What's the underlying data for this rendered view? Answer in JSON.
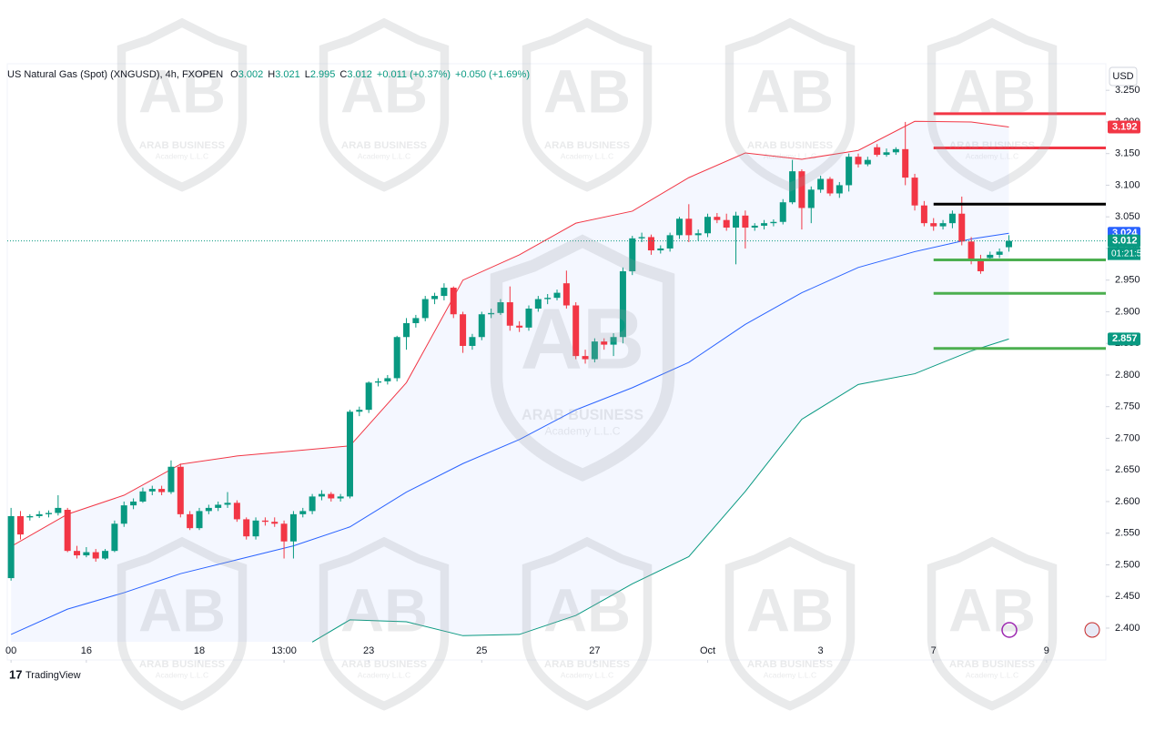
{
  "chart_data": {
    "type": "candlestick",
    "header": {
      "title": "US Natural Gas (Spot) (XNGUSD), 4h, FXOPEN",
      "fields": [
        {
          "key": "O",
          "value": 3.002
        },
        {
          "key": "H",
          "value": 3.021
        },
        {
          "key": "L",
          "value": 2.995
        },
        {
          "key": "C",
          "value": 3.012
        }
      ],
      "change": "+0.011 (+0.37%)",
      "change2": "+0.050 (+1.69%)"
    },
    "currency": "USD",
    "brand": "TradingView",
    "watermark": {
      "name": "ARAB BUSINESS",
      "sub": "Academy L.L.C"
    },
    "up_color": "#089981",
    "down_color": "#f23645",
    "open": [
      2.479,
      2.577,
      2.575,
      2.577,
      2.58,
      2.582,
      2.587,
      2.522,
      2.515,
      2.52,
      2.51,
      2.522,
      2.565,
      2.594,
      2.6,
      2.616,
      2.62,
      2.615,
      2.655,
      2.58,
      2.558,
      2.585,
      2.59,
      2.595,
      2.598,
      2.572,
      2.545,
      2.57,
      2.568,
      2.565,
      2.537,
      2.58,
      2.585,
      2.608,
      2.612,
      2.605,
      2.608,
      2.742,
      2.745,
      2.788,
      2.79,
      2.795,
      2.86,
      2.882,
      2.89,
      2.92,
      2.925,
      2.938,
      2.896,
      2.846,
      2.86,
      2.896,
      2.898,
      2.915,
      2.878,
      2.875,
      2.905,
      2.92,
      2.922,
      2.945,
      2.91,
      2.83,
      2.825,
      2.853,
      2.848,
      2.86,
      2.964,
      3.016,
      3.018,
      2.997,
      3.0,
      3.021,
      3.047,
      3.021,
      3.024,
      3.05,
      3.045,
      3.033,
      3.052,
      3.033,
      3.036,
      3.04,
      3.042,
      3.073,
      3.122,
      3.064,
      3.093,
      3.11,
      3.087,
      3.1,
      3.145,
      3.133,
      3.16,
      3.148,
      3.152,
      3.157,
      3.112,
      3.068,
      3.04,
      3.035,
      3.04,
      3.055,
      3.011,
      2.982,
      2.985,
      2.99,
      3.002
    ],
    "high": [
      2.59,
      2.585,
      2.58,
      2.585,
      2.586,
      2.61,
      2.59,
      2.53,
      2.528,
      2.525,
      2.525,
      2.57,
      2.6,
      2.605,
      2.622,
      2.625,
      2.625,
      2.665,
      2.66,
      2.585,
      2.59,
      2.595,
      2.6,
      2.615,
      2.602,
      2.575,
      2.575,
      2.575,
      2.575,
      2.57,
      2.585,
      2.59,
      2.612,
      2.618,
      2.615,
      2.612,
      2.745,
      2.75,
      2.79,
      2.795,
      2.8,
      2.862,
      2.89,
      2.895,
      2.925,
      2.93,
      2.945,
      2.94,
      2.9,
      2.865,
      2.9,
      2.905,
      2.92,
      2.94,
      2.885,
      2.91,
      2.925,
      2.928,
      2.935,
      2.965,
      2.915,
      2.84,
      2.858,
      2.858,
      2.866,
      2.97,
      3.02,
      3.025,
      3.022,
      3.005,
      3.025,
      3.05,
      3.07,
      3.03,
      3.055,
      3.056,
      3.055,
      3.058,
      3.06,
      3.04,
      3.045,
      3.046,
      3.078,
      3.14,
      3.125,
      3.098,
      3.115,
      3.113,
      3.105,
      3.15,
      3.15,
      3.145,
      3.165,
      3.158,
      3.16,
      3.2,
      3.118,
      3.075,
      3.048,
      3.045,
      3.06,
      3.082,
      3.018,
      2.99,
      2.995,
      3.0,
      3.021
    ],
    "low": [
      2.475,
      2.54,
      2.57,
      2.574,
      2.575,
      2.578,
      2.52,
      2.51,
      2.512,
      2.505,
      2.508,
      2.52,
      2.56,
      2.588,
      2.598,
      2.61,
      2.61,
      2.612,
      2.575,
      2.555,
      2.555,
      2.58,
      2.585,
      2.59,
      2.568,
      2.54,
      2.54,
      2.562,
      2.56,
      2.51,
      2.51,
      2.575,
      2.58,
      2.602,
      2.6,
      2.6,
      2.605,
      2.735,
      2.74,
      2.782,
      2.785,
      2.79,
      2.84,
      2.875,
      2.885,
      2.912,
      2.918,
      2.89,
      2.835,
      2.84,
      2.855,
      2.89,
      2.895,
      2.87,
      2.868,
      2.87,
      2.9,
      2.912,
      2.918,
      2.905,
      2.825,
      2.818,
      2.82,
      2.84,
      2.83,
      2.85,
      2.958,
      3.01,
      2.99,
      2.992,
      2.995,
      3.015,
      3.01,
      3.012,
      3.018,
      3.04,
      3.028,
      2.975,
      3.0,
      3.028,
      3.03,
      3.035,
      3.038,
      3.07,
      3.03,
      3.04,
      3.088,
      3.083,
      3.08,
      3.09,
      3.128,
      3.13,
      3.145,
      3.145,
      3.148,
      3.1,
      3.06,
      3.035,
      3.028,
      3.03,
      3.032,
      3.005,
      2.975,
      2.96,
      2.98,
      2.985,
      2.995
    ],
    "close": [
      2.577,
      2.548,
      2.577,
      2.58,
      2.582,
      2.59,
      2.522,
      2.515,
      2.52,
      2.51,
      2.522,
      2.565,
      2.594,
      2.6,
      2.616,
      2.62,
      2.615,
      2.655,
      2.58,
      2.558,
      2.585,
      2.59,
      2.595,
      2.598,
      2.572,
      2.545,
      2.57,
      2.568,
      2.565,
      2.537,
      2.58,
      2.585,
      2.608,
      2.612,
      2.605,
      2.608,
      2.742,
      2.745,
      2.788,
      2.79,
      2.795,
      2.86,
      2.882,
      2.89,
      2.92,
      2.925,
      2.938,
      2.896,
      2.846,
      2.86,
      2.896,
      2.898,
      2.915,
      2.878,
      2.875,
      2.905,
      2.92,
      2.922,
      2.93,
      2.91,
      2.83,
      2.825,
      2.853,
      2.848,
      2.86,
      2.964,
      3.016,
      3.018,
      2.997,
      3.0,
      3.021,
      3.047,
      3.021,
      3.024,
      3.05,
      3.045,
      3.033,
      3.052,
      3.033,
      3.036,
      3.04,
      3.042,
      3.073,
      3.122,
      3.064,
      3.093,
      3.11,
      3.087,
      3.1,
      3.145,
      3.133,
      3.14,
      3.148,
      3.152,
      3.157,
      3.112,
      3.068,
      3.04,
      3.035,
      3.04,
      3.055,
      3.011,
      2.982,
      2.964,
      2.99,
      2.995,
      3.012
    ],
    "bands": [
      {
        "color": "#f23645",
        "x": [
          0,
          6,
          12,
          18,
          24,
          30,
          36,
          42,
          48,
          54,
          60,
          66,
          72,
          78,
          84,
          90,
          96,
          102,
          106
        ],
        "values": [
          2.529,
          2.58,
          2.61,
          2.659,
          2.672,
          2.68,
          2.688,
          2.788,
          2.95,
          2.99,
          3.04,
          3.059,
          3.112,
          3.151,
          3.141,
          3.155,
          3.201,
          3.2,
          3.192
        ]
      },
      {
        "color": "#2962ff",
        "x": [
          0,
          6,
          12,
          18,
          24,
          30,
          36,
          42,
          48,
          54,
          60,
          66,
          72,
          78,
          84,
          90,
          96,
          102,
          106
        ],
        "values": [
          2.39,
          2.43,
          2.456,
          2.486,
          2.508,
          2.53,
          2.56,
          2.615,
          2.66,
          2.698,
          2.745,
          2.78,
          2.82,
          2.88,
          2.93,
          2.97,
          2.995,
          3.015,
          3.024
        ]
      },
      {
        "color": "#089981",
        "x": [
          32,
          36,
          42,
          48,
          54,
          60,
          66,
          72,
          78,
          84,
          90,
          96,
          102,
          106
        ],
        "values": [
          2.378,
          2.413,
          2.41,
          2.388,
          2.39,
          2.42,
          2.47,
          2.513,
          2.616,
          2.73,
          2.785,
          2.802,
          2.838,
          2.857
        ]
      }
    ],
    "levels": [
      {
        "value": 3.213,
        "color": "#f23645",
        "x_start": 98
      },
      {
        "value": 3.159,
        "color": "#f23645",
        "x_start": 98
      },
      {
        "value": 3.07,
        "color": "#000000",
        "x_start": 98
      },
      {
        "value": 2.982,
        "color": "#4caf50",
        "x_start": 98
      },
      {
        "value": 2.929,
        "color": "#4caf50",
        "x_start": 98
      },
      {
        "value": 2.842,
        "color": "#4caf50",
        "x_start": 98
      }
    ],
    "price_labels": [
      {
        "value": 3.192,
        "color": "#f23645"
      },
      {
        "value": 3.024,
        "color": "#2962ff"
      },
      {
        "value": 3.012,
        "color": "#089981",
        "countdown": "01:21:50"
      },
      {
        "value": 2.857,
        "color": "#089981"
      }
    ],
    "xlim": [
      -0.4,
      116.3
    ],
    "xticks": [
      {
        "value": 0,
        "label": "00"
      },
      {
        "value": 8,
        "label": "16"
      },
      {
        "value": 20,
        "label": "18"
      },
      {
        "value": 29,
        "label": "13:00"
      },
      {
        "value": 38,
        "label": "23"
      },
      {
        "value": 50,
        "label": "25"
      },
      {
        "value": 62,
        "label": "27"
      },
      {
        "value": 74,
        "label": "Oct"
      },
      {
        "value": 86,
        "label": "3"
      },
      {
        "value": 98,
        "label": "7"
      },
      {
        "value": 110,
        "label": "9"
      }
    ],
    "ylim": [
      2.3496,
      3.292
    ],
    "yticks": [
      {
        "value": 2.4,
        "label": "2.400"
      },
      {
        "value": 2.45,
        "label": "2.450"
      },
      {
        "value": 2.5,
        "label": "2.500"
      },
      {
        "value": 2.55,
        "label": "2.550"
      },
      {
        "value": 2.6,
        "label": "2.600"
      },
      {
        "value": 2.65,
        "label": "2.650"
      },
      {
        "value": 2.7,
        "label": "2.700"
      },
      {
        "value": 2.75,
        "label": "2.750"
      },
      {
        "value": 2.8,
        "label": "2.800"
      },
      {
        "value": 2.85,
        "label": "2.850"
      },
      {
        "value": 2.9,
        "label": "2.900"
      },
      {
        "value": 2.95,
        "label": "2.950"
      },
      {
        "value": 3.0,
        "label": "3.000"
      },
      {
        "value": 3.05,
        "label": "3.050"
      },
      {
        "value": 3.1,
        "label": "3.100"
      },
      {
        "value": 3.15,
        "label": "3.150"
      },
      {
        "value": 3.2,
        "label": "3.200"
      },
      {
        "value": 3.25,
        "label": "3.250"
      }
    ]
  }
}
